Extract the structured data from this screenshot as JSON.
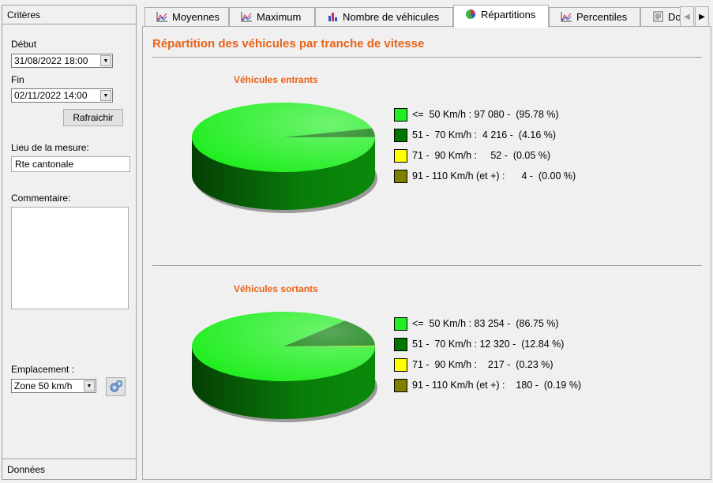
{
  "left": {
    "header": "Critères",
    "start_label": "Début",
    "start_value": "31/08/2022 18:00",
    "end_label": "Fin",
    "end_value": "02/11/2022 14:00",
    "refresh_label": "Rafraichir",
    "location_label": "Lieu de la mesure:",
    "location_value": "Rte cantonale",
    "comment_label": "Commentaire:",
    "placement_label": "Emplacement :",
    "placement_value": "Zone 50 km/h",
    "footer": "Données"
  },
  "tabs": [
    {
      "label": "Moyennes",
      "icon": "line-chart-icon"
    },
    {
      "label": "Maximum",
      "icon": "line-chart-icon"
    },
    {
      "label": "Nombre de véhicules",
      "icon": "bar-chart-icon"
    },
    {
      "label": "Répartitions",
      "icon": "pie-chart-icon"
    },
    {
      "label": "Percentiles",
      "icon": "line-chart-icon"
    },
    {
      "label": "Do",
      "icon": "document-icon"
    }
  ],
  "active_tab": "Répartitions",
  "page_title": "Répartition des véhicules par tranche de vitesse",
  "colors": {
    "accent": "#e8631a",
    "cat1": "#22ee22",
    "cat2": "#007700",
    "cat3": "#ffff00",
    "cat4": "#808000"
  },
  "chart_data": [
    {
      "type": "pie",
      "title": "Véhicules entrants",
      "categories": [
        "<= 50 Km/h",
        "51 - 70 Km/h",
        "71 - 90 Km/h",
        "91 - 110 Km/h (et +)"
      ],
      "values": [
        97080,
        4216,
        52,
        4
      ],
      "percents": [
        95.78,
        4.16,
        0.05,
        0.0
      ],
      "legend_text": [
        "<=  50 Km/h : 97 080 -  (95.78 %)",
        "51 -  70 Km/h :  4 216 -  (4.16 %)",
        "71 -  90 Km/h :     52 -  (0.05 %)",
        "91 - 110 Km/h (et +) :      4 -  (0.00 %)"
      ]
    },
    {
      "type": "pie",
      "title": "Véhicules sortants",
      "categories": [
        "<= 50 Km/h",
        "51 - 70 Km/h",
        "71 - 90 Km/h",
        "91 - 110 Km/h (et +)"
      ],
      "values": [
        83254,
        12320,
        217,
        180
      ],
      "percents": [
        86.75,
        12.84,
        0.23,
        0.19
      ],
      "legend_text": [
        "<=  50 Km/h : 83 254 -  (86.75 %)",
        "51 -  70 Km/h : 12 320 -  (12.84 %)",
        "71 -  90 Km/h :    217 -  (0.23 %)",
        "91 - 110 Km/h (et +) :    180 -  (0.19 %)"
      ]
    }
  ]
}
